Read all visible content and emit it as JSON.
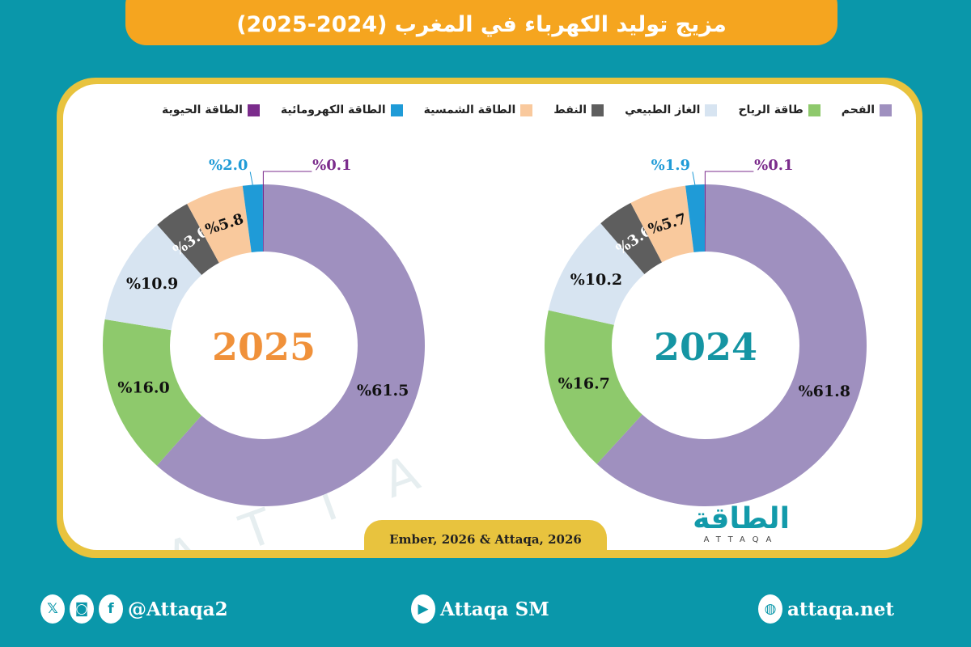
{
  "title": "مزيج توليد الكهرباء في المغرب (2024-2025)",
  "chart_data": [
    {
      "type": "pie",
      "variant": "donut",
      "center_label": "2024",
      "center_color": "#1595a3",
      "categories": [
        "الفحم",
        "طاقة الرياح",
        "الغاز الطبيعي",
        "النفط",
        "الطاقة الشمسية",
        "الطاقة الكهرومائية",
        "الطاقة الحيوية"
      ],
      "values": [
        61.8,
        16.7,
        10.2,
        3.6,
        5.7,
        1.9,
        0.1
      ],
      "labels": [
        "%61.8",
        "%16.7",
        "%10.2",
        "%3.6",
        "%5.7",
        "%1.9",
        "%0.1"
      ]
    },
    {
      "type": "pie",
      "variant": "donut",
      "center_label": "2025",
      "center_color": "#f0913a",
      "categories": [
        "الفحم",
        "طاقة الرياح",
        "الغاز الطبيعي",
        "النفط",
        "الطاقة الشمسية",
        "الطاقة الكهرومائية",
        "الطاقة الحيوية"
      ],
      "values": [
        61.5,
        16.0,
        10.9,
        3.6,
        5.8,
        2.0,
        0.1
      ],
      "labels": [
        "%61.5",
        "%16.0",
        "%10.9",
        "%3.6",
        "%5.8",
        "%2.0",
        "%0.1"
      ]
    }
  ],
  "legend": [
    {
      "label": "الفحم",
      "color": "#9f90bf"
    },
    {
      "label": "طاقة الرياح",
      "color": "#8ec96c"
    },
    {
      "label": "الغاز الطبيعي",
      "color": "#d7e4f1"
    },
    {
      "label": "النفط",
      "color": "#5e5e5e"
    },
    {
      "label": "الطاقة الشمسية",
      "color": "#f9c99d"
    },
    {
      "label": "الطاقة الكهرومائية",
      "color": "#1f9bd7"
    },
    {
      "label": "الطاقة الحيوية",
      "color": "#7b2c8c"
    }
  ],
  "source": "Ember, 2026 & Attaqa, 2026",
  "logo": {
    "arabic": "الطاقة",
    "latin": "ATTAQA"
  },
  "footer": {
    "social_handle": "@Attaqa2",
    "youtube": "Attaqa SM",
    "website": "attaqa.net"
  }
}
